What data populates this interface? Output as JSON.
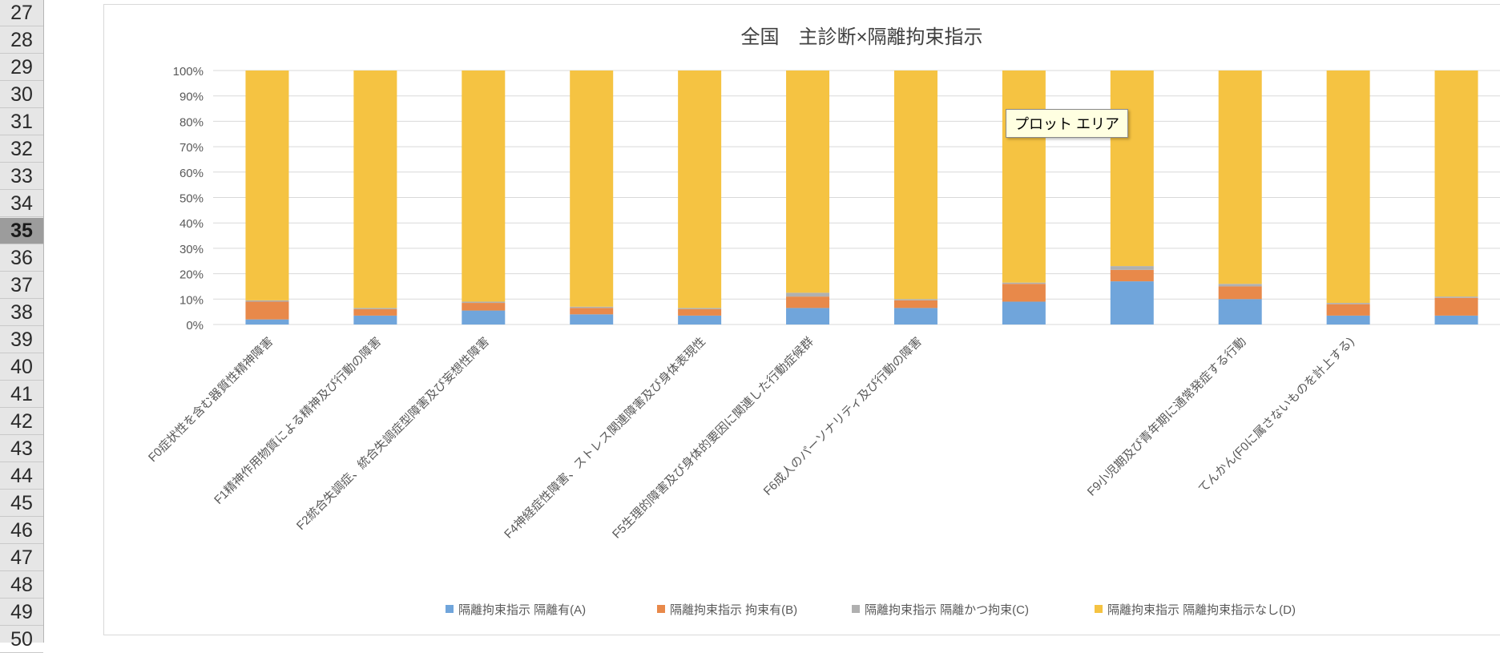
{
  "sheet": {
    "row_numbers": [
      "27",
      "28",
      "29",
      "30",
      "31",
      "32",
      "33",
      "34",
      "35",
      "36",
      "37",
      "38",
      "39",
      "40",
      "41",
      "42",
      "43",
      "44",
      "45",
      "46",
      "47",
      "48",
      "49",
      "50"
    ],
    "active_row": "35"
  },
  "tooltip": {
    "text": "プロット エリア"
  },
  "chart_data": {
    "type": "bar",
    "stacked": "percent",
    "title": "全国　主診断×隔離拘束指示",
    "categories": [
      "F0症状性を含む器質性精神障害",
      "F1精神作用物質による精神及び行動の障害",
      "F2統合失調症、統合失調症型障害及び妄想性障害",
      "",
      "F4神経症性障害、ストレス関連障害及び身体表現性",
      "F5生理的障害及び身体的要因に関連した行動症候群",
      "F6成人のパーソナリティ及び行動の障害",
      "",
      "",
      "F9小児期及び青年期に通常発症する行動",
      "てんかん(F0に属さないものを計上する)",
      ""
    ],
    "series": [
      {
        "name": "隔離拘束指示 隔離有(A)",
        "color": "#70a5db",
        "values": [
          2,
          3.5,
          5.5,
          4,
          3.5,
          6.5,
          6.5,
          9,
          17,
          10,
          3.5,
          3.5
        ]
      },
      {
        "name": "隔離拘束指示 拘束有(B)",
        "color": "#e8894a",
        "values": [
          7,
          2.5,
          3,
          2.5,
          2.5,
          4.5,
          3,
          7,
          4.5,
          5,
          4.5,
          7
        ]
      },
      {
        "name": "隔離拘束指示 隔離かつ拘束(C)",
        "color": "#b0b0b0",
        "values": [
          0.5,
          0.5,
          0.5,
          0.5,
          0.5,
          1.5,
          0.5,
          0.5,
          1.5,
          1,
          0.5,
          0.5
        ]
      },
      {
        "name": "隔離拘束指示 隔離拘束指示なし(D)",
        "color": "#f5c342",
        "values": [
          90.5,
          93.5,
          91,
          93,
          93.5,
          87.5,
          90,
          83.5,
          77,
          84,
          91.5,
          89
        ]
      }
    ],
    "y_ticks": [
      "0%",
      "10%",
      "20%",
      "30%",
      "40%",
      "50%",
      "60%",
      "70%",
      "80%",
      "90%",
      "100%"
    ],
    "ylim": [
      0,
      100
    ],
    "grid": true,
    "legend_position": "bottom"
  }
}
